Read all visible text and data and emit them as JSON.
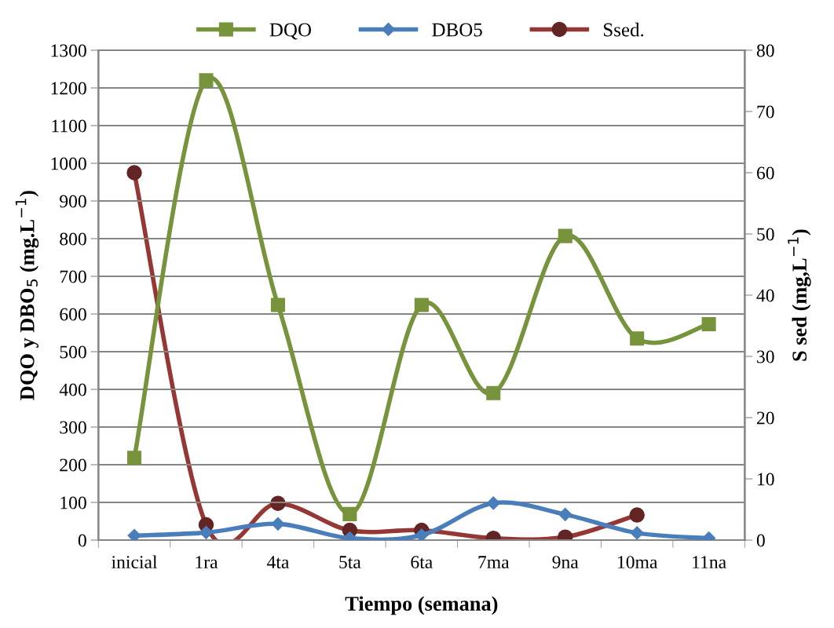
{
  "chart_data": {
    "type": "line",
    "categories": [
      "inicial",
      "1ra",
      "4ta",
      "5ta",
      "6ta",
      "7ma",
      "9na",
      "10ma",
      "11na"
    ],
    "xlabel": "Tiempo (semana)",
    "ylabel": "DQO y DBO$_{5}$ (mg.L$^{−1}$)",
    "y2label": "S sed (mg,L$^{−1}$)",
    "ylim": [
      0,
      1300
    ],
    "yticks": [
      0,
      100,
      200,
      300,
      400,
      500,
      600,
      700,
      800,
      900,
      1000,
      1100,
      1200,
      1300
    ],
    "y2lim": [
      0,
      80
    ],
    "y2ticks": [
      0,
      10,
      20,
      30,
      40,
      50,
      60,
      70,
      80
    ],
    "grid": "y",
    "legend": "top",
    "series": [
      {
        "name": "DQO",
        "color": "#77933c",
        "marker": "square",
        "values": [
          218,
          1220,
          624,
          69,
          624,
          390,
          807,
          535,
          573
        ]
      },
      {
        "name": "DBO5",
        "color": "#4a7ebb",
        "marker": "diamond",
        "values": [
          12,
          20,
          43,
          5,
          13,
          98,
          68,
          19,
          5
        ]
      },
      {
        "name": "Ssed.",
        "color": "#953735",
        "marker": "circle",
        "axis": "y2",
        "values": [
          60,
          2.5,
          6,
          1.6,
          1.6,
          0.3,
          0.5,
          4.1,
          null
        ]
      }
    ]
  }
}
